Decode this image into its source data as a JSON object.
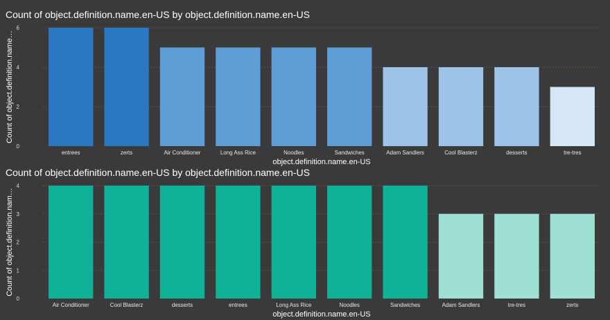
{
  "colors": {
    "background": "#3a3a3a",
    "chart1_bars": [
      "#2a78c2",
      "#2a78c2",
      "#5f9dd7",
      "#5f9dd7",
      "#5f9dd7",
      "#5f9dd7",
      "#9dc3e8",
      "#9dc3e8",
      "#9dc3e8",
      "#d4e6f7"
    ],
    "chart2_bars": [
      "#0fb297",
      "#0fb297",
      "#0fb297",
      "#0fb297",
      "#0fb297",
      "#0fb297",
      "#0fb297",
      "#9fe0d5",
      "#9fe0d5",
      "#9fe0d5"
    ]
  },
  "chart_data": [
    {
      "type": "bar",
      "title": "Count of object.definition.name.en-US by object.definition.name.en-US",
      "xlabel": "object.definition.name.en-US",
      "ylabel": "Count of object.definition.name…",
      "categories": [
        "entrees",
        "zerts",
        "Air Conditioner",
        "Long Ass Rice",
        "Noodles",
        "Sandwiches",
        "Adam Sandlers",
        "Cool Blasterz",
        "desserts",
        "tre-tres"
      ],
      "values": [
        6,
        6,
        5,
        5,
        5,
        5,
        4,
        4,
        4,
        3
      ],
      "ylim": [
        0,
        6
      ],
      "yticks": [
        "0",
        "2",
        "4",
        "6"
      ],
      "grid": true
    },
    {
      "type": "bar",
      "title": "Count of object.definition.name.en-US by object.definition.name.en-US",
      "xlabel": "object.definition.name.en-US",
      "ylabel": "Count of object.definition.nam…",
      "categories": [
        "Air Conditioner",
        "Cool Blasterz",
        "desserts",
        "entrees",
        "Long Ass Rice",
        "Noodles",
        "Sandwiches",
        "Adam Sandlers",
        "tre-tres",
        "zerts"
      ],
      "values": [
        4,
        4,
        4,
        4,
        4,
        4,
        4,
        3,
        3,
        3
      ],
      "ylim": [
        0,
        4
      ],
      "yticks": [
        "0",
        "1",
        "2",
        "3",
        "4"
      ],
      "grid": true
    }
  ]
}
